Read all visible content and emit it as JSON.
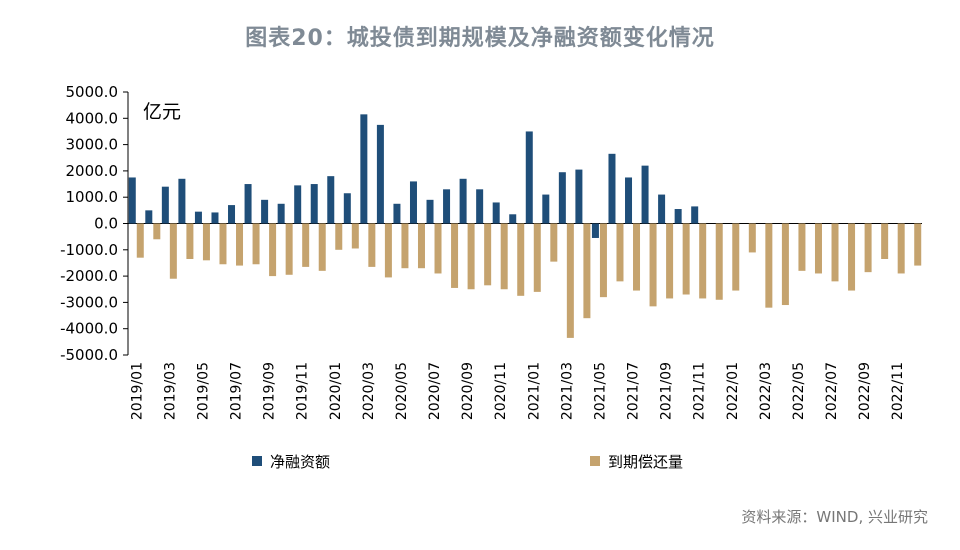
{
  "title": "图表20：城投债到期规模及净融资额变化情况",
  "source": "资料来源：WIND, 兴业研究",
  "chart_data": {
    "type": "bar",
    "unit_label": "亿元",
    "ylim": [
      -5000,
      5000
    ],
    "yticks": [
      5000,
      4000,
      3000,
      2000,
      1000,
      0,
      -1000,
      -2000,
      -3000,
      -4000,
      -5000
    ],
    "ytick_labels": [
      "5000.0",
      "4000.0",
      "3000.0",
      "2000.0",
      "1000.0",
      "0.0",
      "-1000.0",
      "-2000.0",
      "-3000.0",
      "-4000.0",
      "-5000.0"
    ],
    "categories": [
      "2019/01",
      "2019/02",
      "2019/03",
      "2019/04",
      "2019/05",
      "2019/06",
      "2019/07",
      "2019/08",
      "2019/09",
      "2019/10",
      "2019/11",
      "2019/12",
      "2020/01",
      "2020/02",
      "2020/03",
      "2020/04",
      "2020/05",
      "2020/06",
      "2020/07",
      "2020/08",
      "2020/09",
      "2020/10",
      "2020/11",
      "2020/12",
      "2021/01",
      "2021/02",
      "2021/03",
      "2021/04",
      "2021/05",
      "2021/06",
      "2021/07",
      "2021/08",
      "2021/09",
      "2021/10",
      "2021/11",
      "2021/12",
      "2022/01",
      "2022/02",
      "2022/03",
      "2022/04",
      "2022/05",
      "2022/06",
      "2022/07",
      "2022/08",
      "2022/09",
      "2022/10",
      "2022/11",
      "2022/12"
    ],
    "xtick_labels": [
      "2019/01",
      "2019/03",
      "2019/05",
      "2019/07",
      "2019/09",
      "2019/11",
      "2020/01",
      "2020/03",
      "2020/05",
      "2020/07",
      "2020/09",
      "2020/11",
      "2021/01",
      "2021/03",
      "2021/05",
      "2021/07",
      "2021/09",
      "2021/11",
      "2022/01",
      "2022/03",
      "2022/05",
      "2022/07",
      "2022/09",
      "2022/11"
    ],
    "legend": "bottom",
    "series": [
      {
        "name": "净融资额",
        "color": "#1f4e79",
        "values": [
          1750,
          500,
          1400,
          1700,
          450,
          420,
          700,
          1500,
          900,
          750,
          1450,
          1500,
          1800,
          1150,
          4150,
          3750,
          750,
          1600,
          900,
          1300,
          1700,
          1300,
          800,
          350,
          3500,
          1100,
          1950,
          2050,
          -550,
          2650,
          1750,
          2200,
          1100,
          550,
          650,
          null,
          null,
          null,
          null,
          null,
          null,
          null,
          null,
          null,
          null,
          null,
          null,
          null
        ]
      },
      {
        "name": "到期偿还量",
        "color": "#c5a36e",
        "values": [
          -1300,
          -600,
          -2100,
          -1350,
          -1400,
          -1550,
          -1600,
          -1550,
          -2000,
          -1950,
          -1650,
          -1800,
          -1000,
          -950,
          -1650,
          -2050,
          -1700,
          -1700,
          -1900,
          -2450,
          -2500,
          -2350,
          -2500,
          -2750,
          -2600,
          -1450,
          -4350,
          -3600,
          -2800,
          -2200,
          -2550,
          -3150,
          -2850,
          -2700,
          -2850,
          -2900,
          -2550,
          -1100,
          -3200,
          -3100,
          -1800,
          -1900,
          -2200,
          -2550,
          -1850,
          -1350,
          -1900,
          -1600
        ]
      }
    ]
  }
}
